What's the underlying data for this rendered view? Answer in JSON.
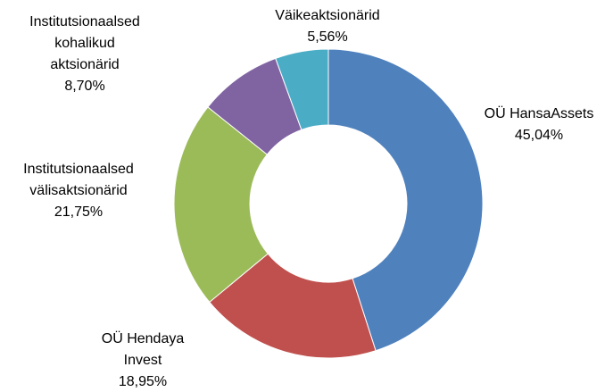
{
  "chart_data": {
    "type": "donut",
    "categories": [
      "OÜ HansaAssets",
      "OÜ Hendaya Invest",
      "Institutsionaalsed välisaktsionärid",
      "Institutsionaalsed kohalikud aktsionärid",
      "Väikeaktsionärid"
    ],
    "values": [
      45.04,
      18.95,
      21.75,
      8.7,
      5.56
    ],
    "value_labels": [
      "45,04%",
      "18,95%",
      "21,75%",
      "8,70%",
      "5,56%"
    ],
    "colors": [
      "#4f81bd",
      "#c0504d",
      "#9bbb59",
      "#8064a2",
      "#4bacc6"
    ]
  }
}
